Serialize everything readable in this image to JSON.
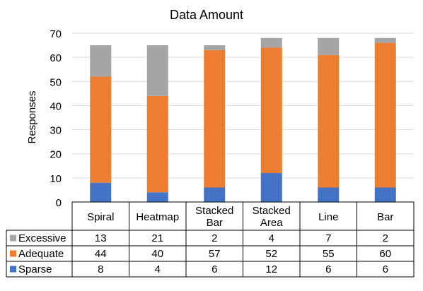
{
  "chart_data": {
    "type": "bar",
    "stacked": true,
    "title": "Data Amount",
    "xlabel": "",
    "ylabel": "Responses",
    "ylim": [
      0,
      70
    ],
    "yticks": [
      0,
      10,
      20,
      30,
      40,
      50,
      60,
      70
    ],
    "grid": true,
    "categories": [
      [
        "Spiral"
      ],
      [
        "Heatmap"
      ],
      [
        "Stacked",
        "Bar"
      ],
      [
        "Stacked",
        "Area"
      ],
      [
        "Line"
      ],
      [
        "Bar"
      ]
    ],
    "series": [
      {
        "name": "Sparse",
        "color": "#4472C4",
        "values": [
          8,
          4,
          6,
          12,
          6,
          6
        ]
      },
      {
        "name": "Adequate",
        "color": "#ED7D31",
        "values": [
          44,
          40,
          57,
          52,
          55,
          60
        ]
      },
      {
        "name": "Excessive",
        "color": "#A5A5A5",
        "values": [
          13,
          21,
          2,
          4,
          7,
          2
        ]
      }
    ],
    "data_table": true,
    "table_row_order": [
      "Excessive",
      "Adequate",
      "Sparse"
    ]
  }
}
